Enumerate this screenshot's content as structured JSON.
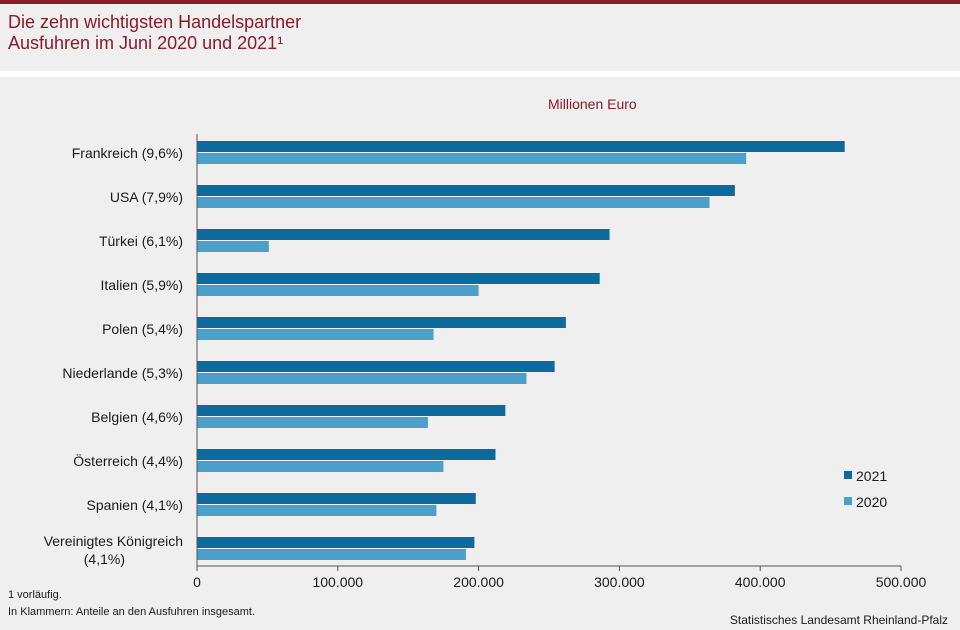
{
  "header": {
    "title_line1": "Die zehn wichtigsten Handelspartner",
    "title_line2": "Ausfuhren im Juni 2020 und 2021¹"
  },
  "unit_label": "Millionen Euro",
  "colors": {
    "accent": "#8b1a2b",
    "series_2021": "#0c6b9c",
    "series_2020": "#4aa0c8"
  },
  "chart_data": {
    "type": "bar",
    "orientation": "horizontal",
    "categories": [
      "Frankreich (9,6%)",
      "USA (7,9%)",
      "Türkei (6,1%)",
      "Italien (5,9%)",
      "Polen (5,4%)",
      "Niederlande (5,3%)",
      "Belgien (4,6%)",
      "Österreich (4,4%)",
      "Spanien (4,1%)",
      "Vereinigtes Königreich (4,1%)"
    ],
    "series": [
      {
        "name": "2021",
        "values": [
          460000,
          382000,
          293000,
          286000,
          262000,
          254000,
          219000,
          212000,
          198000,
          197000
        ]
      },
      {
        "name": "2020",
        "values": [
          390000,
          364000,
          51000,
          200000,
          168000,
          234000,
          164000,
          175000,
          170000,
          191000
        ]
      }
    ],
    "xlim": [
      0,
      500000
    ],
    "xticks": [
      "0",
      "100.000",
      "200.000",
      "300.000",
      "400.000",
      "500.000"
    ],
    "legend_position": "bottom-right",
    "grid": false
  },
  "footnotes": {
    "line1": "1 vorläufig.",
    "line2": "In Klammern: Anteile an den Ausfuhren insgesamt."
  },
  "source": "Statistisches Landesamt Rheinland-Pfalz"
}
